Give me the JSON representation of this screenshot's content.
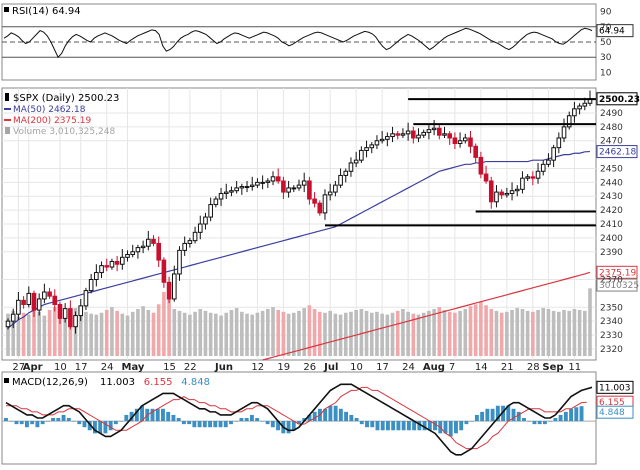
{
  "chart_data": [
    {
      "type": "line",
      "panel": "RSI",
      "legend_text": "RSI(14) 64.94",
      "last_value": 64.94,
      "last_label": "64.94",
      "ylim": [
        0,
        100
      ],
      "ticks": [
        {
          "value": 90,
          "label": "90"
        },
        {
          "value": 70,
          "label": "70"
        },
        {
          "value": 50,
          "label": "50"
        },
        {
          "value": 30,
          "label": "30"
        },
        {
          "value": 10,
          "label": "10"
        }
      ],
      "reference_lines": [
        70,
        50,
        30
      ],
      "series": [
        {
          "values": [
            55,
            58,
            62,
            60,
            57,
            52,
            48,
            50,
            55,
            60,
            65,
            63,
            58,
            50,
            40,
            30,
            35,
            45,
            52,
            57,
            60,
            58,
            55,
            52,
            50,
            55,
            58,
            60,
            62,
            60,
            58,
            55,
            52,
            50,
            48,
            52,
            55,
            58,
            60,
            62,
            64,
            66,
            65,
            60,
            45,
            38,
            40,
            44,
            50,
            55,
            58,
            60,
            63,
            65,
            64,
            62,
            60,
            56,
            52,
            48,
            50,
            54,
            57,
            60,
            62,
            61,
            59,
            57,
            55,
            57,
            59,
            61,
            63,
            62,
            60,
            58,
            55,
            50,
            48,
            45,
            47,
            50,
            53,
            56,
            58,
            60,
            62,
            63,
            62,
            60,
            58,
            56,
            54,
            52,
            50,
            52,
            55,
            58,
            60,
            62,
            64,
            63,
            61,
            57,
            50,
            44,
            40,
            42,
            46,
            50,
            54,
            57,
            60,
            58,
            55,
            52,
            48,
            44,
            40,
            43,
            47,
            51,
            55,
            58,
            60,
            62,
            64,
            66,
            68,
            67,
            65,
            63,
            61,
            58,
            55,
            52,
            50,
            48,
            45,
            42,
            40,
            43,
            47,
            52,
            56,
            60,
            62,
            63,
            62,
            60,
            58,
            56,
            54,
            50,
            48,
            47,
            50,
            54,
            58,
            62,
            66,
            68,
            67,
            64.94
          ]
        }
      ]
    },
    {
      "type": "candlestick",
      "panel": "price",
      "legend": [
        {
          "text": "$SPX (Daily) 2500.23",
          "color": "#000000",
          "icon": "candle-icon"
        },
        {
          "text": "MA(50) 2462.18",
          "color": "#3b3f9e",
          "icon": "line-icon"
        },
        {
          "text": "MA(200) 2375.19",
          "color": "#d9363e",
          "icon": "line-icon"
        },
        {
          "text": "Volume 3,010,325,248",
          "color": "#a5a5a5",
          "icon": "bar-icon"
        }
      ],
      "ylim": [
        2312,
        2508
      ],
      "ticks": [
        {
          "value": 2490,
          "label": "2490"
        },
        {
          "value": 2480,
          "label": "2480"
        },
        {
          "value": 2470,
          "label": "2470"
        },
        {
          "value": 2450,
          "label": "2450"
        },
        {
          "value": 2440,
          "label": "2440"
        },
        {
          "value": 2430,
          "label": "2430"
        },
        {
          "value": 2420,
          "label": "2420"
        },
        {
          "value": 2410,
          "label": "2410"
        },
        {
          "value": 2400,
          "label": "2400"
        },
        {
          "value": 2390,
          "label": "2390"
        },
        {
          "value": 2370,
          "label": "2370"
        },
        {
          "value": 2350,
          "label": "2350"
        },
        {
          "value": 2340,
          "label": "2340"
        },
        {
          "value": 2330,
          "label": "2330"
        },
        {
          "value": 2320,
          "label": "2320"
        }
      ],
      "value_tags": [
        {
          "value": 2500.23,
          "label": "2500.23",
          "color": "#000000"
        },
        {
          "value": 2462.18,
          "label": "2462.18",
          "color": "#3b3f9e"
        },
        {
          "value": 2375.19,
          "label": "2375.19",
          "color": "#d9363e"
        },
        {
          "value": 2366,
          "label": "3010325",
          "color": "#808080"
        }
      ],
      "x_labels": [
        {
          "index": 2,
          "label": "27"
        },
        {
          "index": 4,
          "label": "Apr"
        },
        {
          "index": 10,
          "label": "10"
        },
        {
          "index": 14,
          "label": "17"
        },
        {
          "index": 19,
          "label": "24"
        },
        {
          "index": 23,
          "label": "May"
        },
        {
          "index": 31,
          "label": "15"
        },
        {
          "index": 35,
          "label": "22"
        },
        {
          "index": 41,
          "label": "Jun"
        },
        {
          "index": 48,
          "label": "12"
        },
        {
          "index": 53,
          "label": "19"
        },
        {
          "index": 58,
          "label": "26"
        },
        {
          "index": 62,
          "label": "Jul"
        },
        {
          "index": 67,
          "label": "10"
        },
        {
          "index": 72,
          "label": "17"
        },
        {
          "index": 77,
          "label": "24"
        },
        {
          "index": 81,
          "label": "Aug"
        },
        {
          "index": 86,
          "label": "7"
        },
        {
          "index": 91,
          "label": "14"
        },
        {
          "index": 96,
          "label": "21"
        },
        {
          "index": 101,
          "label": "28"
        },
        {
          "index": 104,
          "label": "Sep"
        },
        {
          "index": 109,
          "label": "11"
        }
      ],
      "support_resistance": [
        {
          "value": 2500,
          "from": 77,
          "to": 113
        },
        {
          "value": 2482,
          "from": 78,
          "to": 113
        },
        {
          "value": 2419,
          "from": 90,
          "to": 113
        },
        {
          "value": 2409,
          "from": 61,
          "to": 113
        }
      ],
      "close": [
        2340,
        2345,
        2355,
        2352,
        2360,
        2348,
        2356,
        2361,
        2358,
        2352,
        2342,
        2349,
        2336,
        2344,
        2351,
        2362,
        2370,
        2375,
        2380,
        2379,
        2383,
        2381,
        2386,
        2388,
        2390,
        2393,
        2394,
        2399,
        2396,
        2384,
        2368,
        2356,
        2374,
        2391,
        2396,
        2398,
        2404,
        2410,
        2415,
        2424,
        2428,
        2432,
        2433,
        2434,
        2436,
        2437,
        2437,
        2438,
        2440,
        2440,
        2441,
        2444,
        2441,
        2433,
        2436,
        2436,
        2438,
        2441,
        2428,
        2425,
        2418,
        2431,
        2433,
        2438,
        2445,
        2448,
        2454,
        2456,
        2463,
        2465,
        2467,
        2470,
        2471,
        2473,
        2475,
        2474,
        2475,
        2477,
        2472,
        2474,
        2476,
        2478,
        2479,
        2474,
        2475,
        2472,
        2468,
        2470,
        2472,
        2466,
        2458,
        2446,
        2441,
        2426,
        2433,
        2431,
        2432,
        2434,
        2435,
        2443,
        2444,
        2443,
        2448,
        2453,
        2456,
        2465,
        2472,
        2480,
        2488,
        2493,
        2495,
        2497,
        2500.23
      ],
      "ma50": [
        2335,
        2338,
        2341,
        2343,
        2346,
        2348,
        2350,
        2352,
        2353,
        2354,
        2355,
        2356,
        2357,
        2358,
        2359,
        2360,
        2361,
        2362,
        2363,
        2364,
        2365,
        2366,
        2367,
        2368,
        2369,
        2370,
        2371,
        2372,
        2373,
        2374,
        2375,
        2376,
        2377,
        2378,
        2379,
        2380,
        2381,
        2382,
        2383,
        2384,
        2385,
        2386,
        2387,
        2388,
        2389,
        2390,
        2391,
        2392,
        2393,
        2394,
        2395,
        2396,
        2397,
        2398,
        2399,
        2400,
        2401,
        2402,
        2403,
        2404,
        2405,
        2406,
        2407,
        2408,
        2410,
        2412,
        2414,
        2416,
        2418,
        2420,
        2422,
        2424,
        2426,
        2428,
        2430,
        2432,
        2434,
        2436,
        2438,
        2440,
        2442,
        2444,
        2446,
        2448,
        2449,
        2450,
        2451,
        2452,
        2453,
        2453,
        2454,
        2454,
        2455,
        2455,
        2455,
        2455,
        2455,
        2455,
        2455,
        2455,
        2455,
        2456,
        2456,
        2456,
        2457,
        2458,
        2459,
        2460,
        2460,
        2461,
        2461,
        2462,
        2462.18
      ],
      "ma200": [
        2312,
        2313,
        2314,
        2315,
        2316,
        2317,
        2318,
        2319,
        2320,
        2321,
        2322,
        2323,
        2324,
        2325,
        2326,
        2327,
        2328,
        2329,
        2330,
        2331,
        2332,
        2333,
        2334,
        2335,
        2336,
        2337,
        2338,
        2339,
        2340,
        2341,
        2342,
        2343,
        2344,
        2345,
        2346,
        2347,
        2348,
        2349,
        2350,
        2351,
        2352,
        2353,
        2354,
        2355,
        2356,
        2357,
        2358,
        2359,
        2360,
        2361,
        2362,
        2363,
        2364,
        2365,
        2366,
        2367,
        2368,
        2369,
        2370,
        2371,
        2372,
        2373,
        2374,
        2375.19
      ],
      "volume": [
        45,
        48,
        42,
        46,
        44,
        50,
        47,
        43,
        49,
        52,
        55,
        48,
        46,
        51,
        50,
        47,
        45,
        44,
        46,
        49,
        52,
        48,
        45,
        43,
        47,
        50,
        53,
        49,
        46,
        55,
        68,
        62,
        50,
        48,
        46,
        44,
        47,
        50,
        48,
        46,
        45,
        43,
        46,
        49,
        51,
        47,
        45,
        44,
        46,
        48,
        50,
        52,
        49,
        47,
        45,
        46,
        48,
        51,
        54,
        50,
        47,
        46,
        48,
        45,
        44,
        46,
        47,
        49,
        50,
        48,
        46,
        47,
        45,
        44,
        46,
        48,
        50,
        47,
        45,
        44,
        46,
        48,
        50,
        52,
        49,
        47,
        46,
        48,
        50,
        53,
        55,
        58,
        54,
        50,
        48,
        46,
        47,
        49,
        51,
        50,
        48,
        47,
        49,
        51,
        50,
        48,
        47,
        49,
        48,
        50,
        49,
        48,
        72
      ]
    },
    {
      "type": "line",
      "panel": "MACD",
      "legend_text": "MACD(12,26,9)",
      "legend_values": [
        {
          "label": "11.003",
          "color": "#000000"
        },
        {
          "label": "6.155",
          "color": "#d9363e"
        },
        {
          "label": "4.848",
          "color": "#3a8fc3"
        }
      ],
      "last_values": {
        "macd": 11.003,
        "signal": 6.155,
        "histogram": 4.848
      },
      "ylim": [
        -14,
        16
      ],
      "value_tags": [
        {
          "value": 11.003,
          "label": "11.003",
          "color": "#000000"
        },
        {
          "value": 6.155,
          "label": "6.155",
          "color": "#d9363e"
        },
        {
          "value": 4.848,
          "label": "4.848",
          "color": "#3a8fc3"
        }
      ],
      "macd": [
        6,
        5,
        4,
        3,
        2,
        2,
        1,
        1,
        2,
        3,
        4,
        5,
        5,
        4,
        3,
        1,
        -1,
        -3,
        -4,
        -5,
        -5,
        -4,
        -3,
        -1,
        1,
        3,
        5,
        6,
        7,
        8,
        9,
        9,
        9,
        8,
        7,
        6,
        5,
        4,
        4,
        3,
        3,
        2,
        2,
        2,
        3,
        4,
        5,
        6,
        6,
        5,
        4,
        2,
        0,
        -2,
        -3,
        -3,
        -2,
        0,
        2,
        4,
        6,
        8,
        10,
        11,
        12,
        12,
        12,
        11,
        10,
        9,
        8,
        7,
        6,
        5,
        4,
        3,
        2,
        1,
        0,
        -1,
        -2,
        -3,
        -4,
        -6,
        -8,
        -10,
        -11,
        -11,
        -10,
        -9,
        -7,
        -5,
        -3,
        -1,
        1,
        3,
        5,
        6,
        6,
        5,
        4,
        3,
        2,
        1,
        1,
        2,
        4,
        6,
        8,
        9,
        10,
        10.5,
        11.003
      ],
      "signal": [
        5,
        5,
        5,
        4,
        4,
        3,
        3,
        2,
        2,
        2,
        3,
        3,
        4,
        4,
        4,
        3,
        2,
        1,
        0,
        -1,
        -2,
        -3,
        -3,
        -3,
        -2,
        -1,
        0,
        2,
        3,
        4,
        5,
        6,
        7,
        7,
        8,
        7,
        7,
        6,
        6,
        5,
        5,
        4,
        4,
        3,
        3,
        3,
        4,
        4,
        5,
        5,
        5,
        4,
        3,
        2,
        1,
        0,
        -1,
        -1,
        0,
        1,
        2,
        4,
        5,
        6,
        8,
        9,
        10,
        10,
        11,
        11,
        10,
        10,
        9,
        8,
        7,
        6,
        5,
        4,
        3,
        2,
        1,
        0,
        -1,
        -2,
        -4,
        -5,
        -7,
        -8,
        -9,
        -9,
        -9,
        -8,
        -7,
        -5,
        -4,
        -2,
        0,
        1,
        2,
        3,
        4,
        4,
        4,
        3,
        3,
        3,
        3,
        4,
        4,
        5,
        6,
        6.155
      ],
      "histogram": [
        1,
        0,
        -1,
        -1,
        -2,
        -1,
        -2,
        -1,
        0,
        1,
        1,
        2,
        1,
        0,
        -1,
        -2,
        -3,
        -4,
        -4,
        -4,
        -3,
        -1,
        0,
        2,
        3,
        4,
        5,
        4,
        4,
        4,
        4,
        3,
        2,
        1,
        -1,
        -1,
        -2,
        -2,
        -2,
        -2,
        -2,
        -2,
        -2,
        -1,
        0,
        1,
        1,
        2,
        1,
        0,
        -1,
        -2,
        -3,
        -4,
        -4,
        -3,
        -1,
        1,
        2,
        3,
        4,
        4,
        5,
        5,
        4,
        3,
        2,
        1,
        -1,
        -2,
        -2,
        -3,
        -3,
        -3,
        -3,
        -3,
        -3,
        -3,
        -3,
        -3,
        -3,
        -3,
        -3,
        -4,
        -4,
        -5,
        -4,
        -3,
        -1,
        0,
        2,
        3,
        4,
        4,
        5,
        5,
        5,
        4,
        3,
        1,
        0,
        -1,
        -1,
        -1,
        0,
        1,
        2,
        3,
        4,
        4.5,
        4.848
      ]
    }
  ]
}
